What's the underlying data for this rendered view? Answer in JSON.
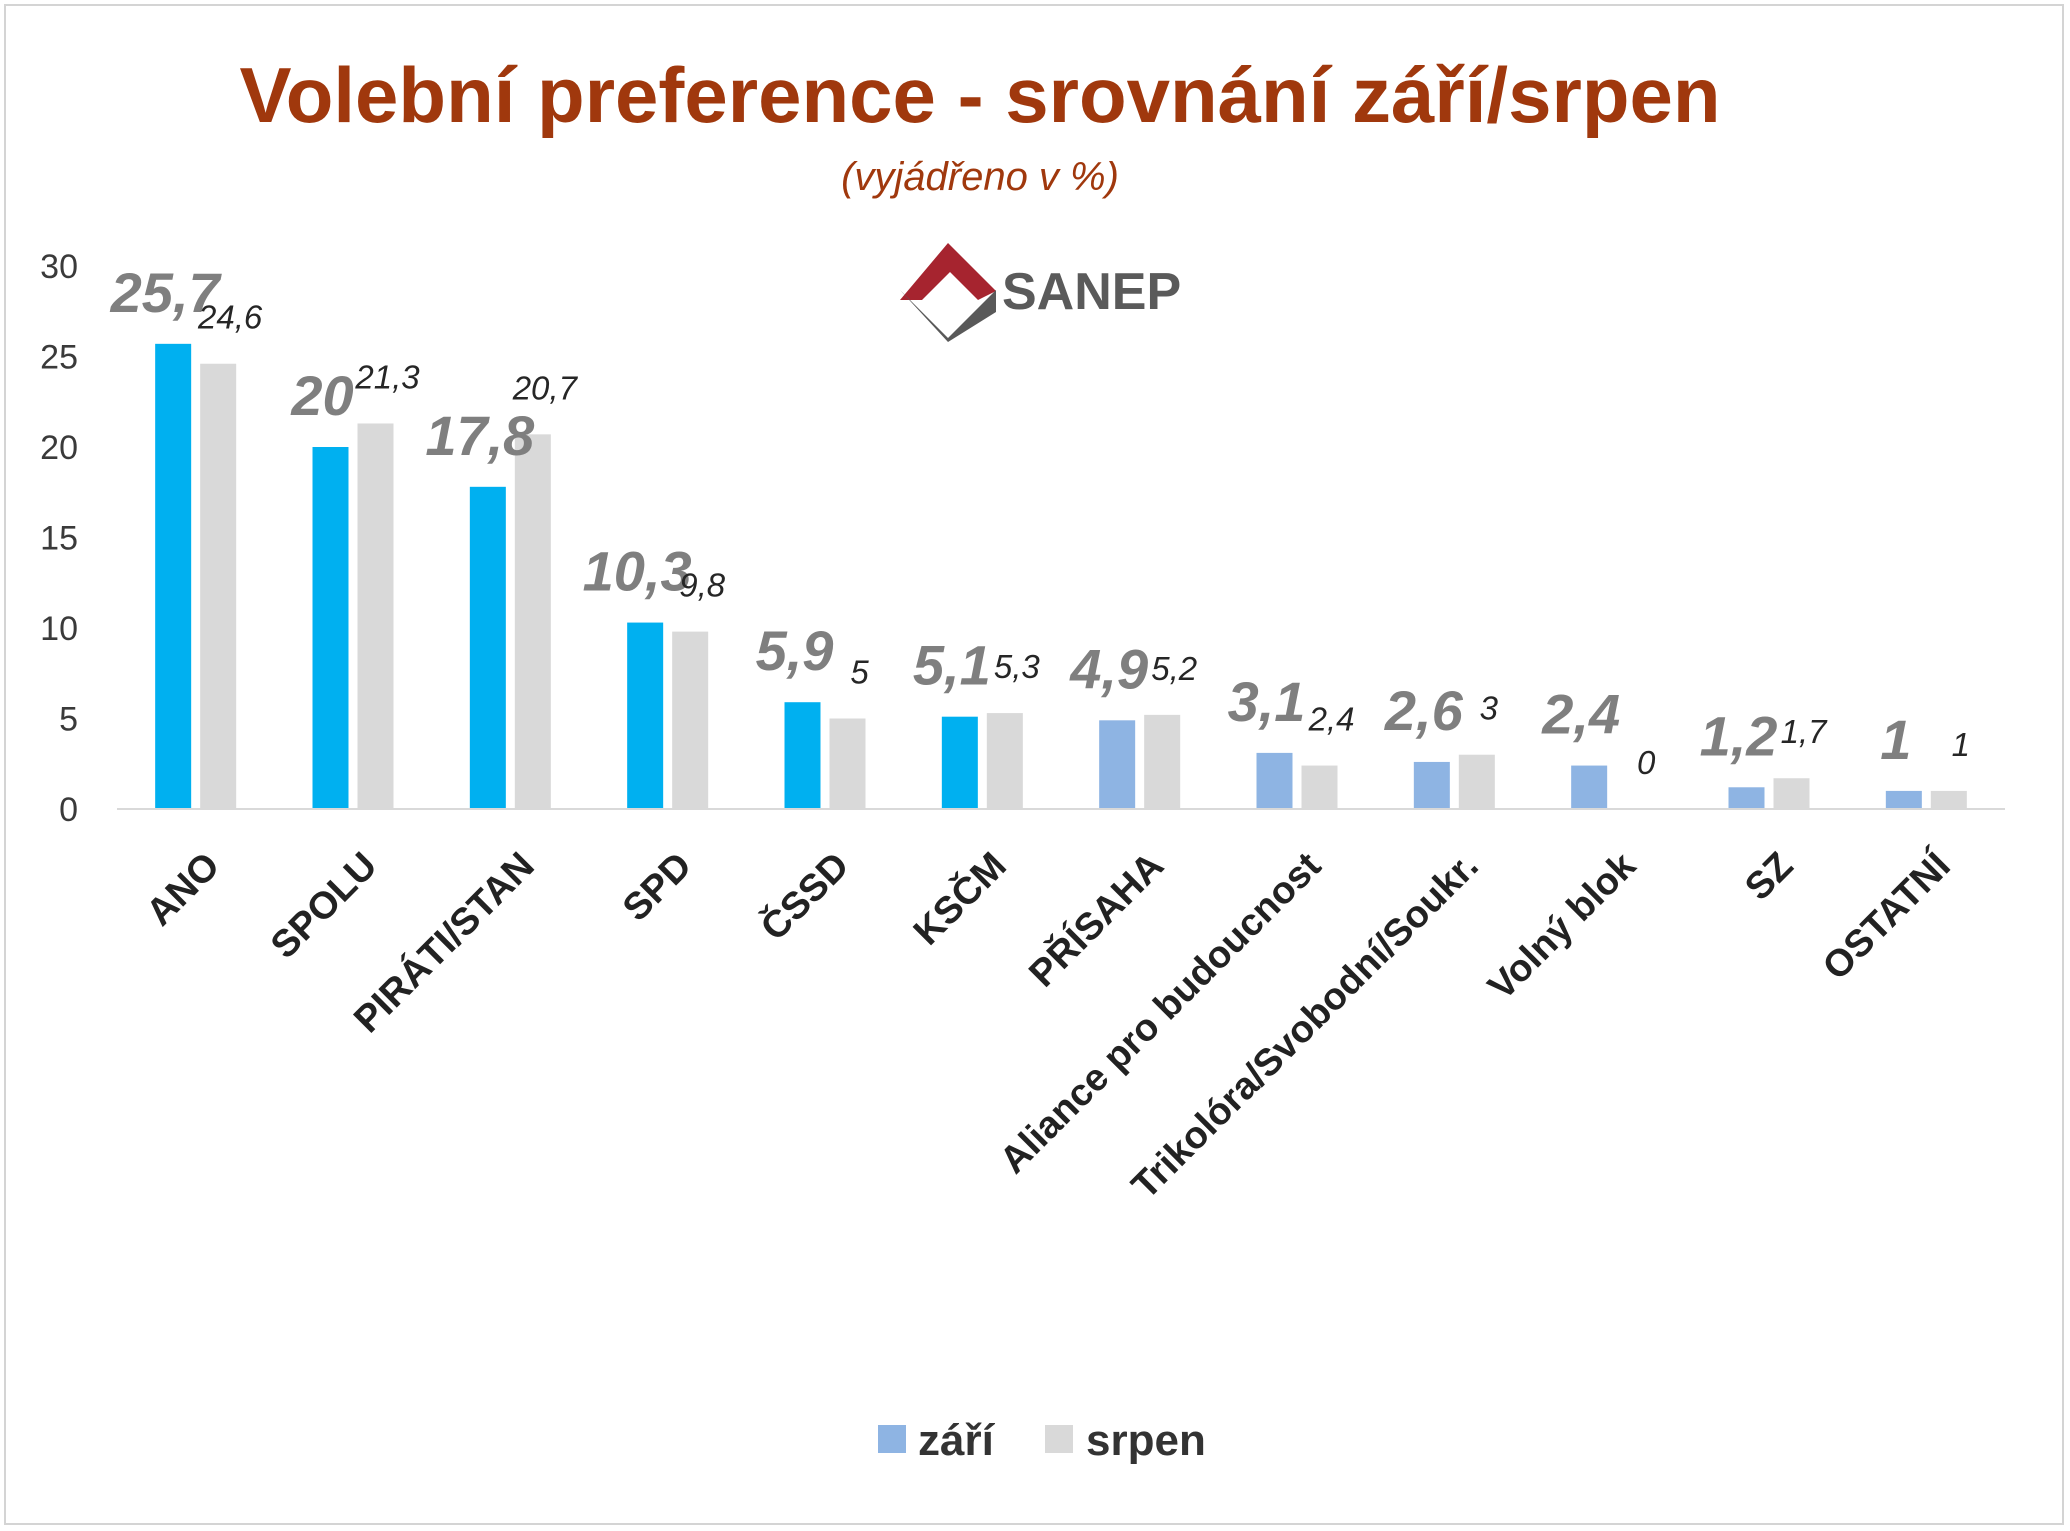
{
  "chart_data": {
    "type": "bar",
    "title": "Volební preference - srovnání září/srpen",
    "subtitle": "(vyjádřeno v %)",
    "logo_text": "SANEP",
    "categories": [
      "ANO",
      "SPOLU",
      "PIRÁTI/STAN",
      "SPD",
      "ČSSD",
      "KSČM",
      "PŘÍSAHA",
      "Aliance pro budoucnost",
      "Trikolóra/Svobodní/Soukr.",
      "Volný blok",
      "SZ",
      "OSTATNÍ"
    ],
    "series": [
      {
        "name": "září",
        "values": [
          25.7,
          20,
          17.8,
          10.3,
          5.9,
          5.1,
          4.9,
          3.1,
          2.6,
          2.4,
          1.2,
          1
        ],
        "labels": [
          "25,7",
          "20",
          "17,8",
          "10,3",
          "5,9",
          "5,1",
          "4,9",
          "3,1",
          "2,6",
          "2,4",
          "1,2",
          "1"
        ],
        "colors": [
          "#00b0f0",
          "#00b0f0",
          "#00b0f0",
          "#00b0f0",
          "#00b0f0",
          "#00b0f0",
          "#8eb4e3",
          "#8eb4e3",
          "#8eb4e3",
          "#8eb4e3",
          "#8eb4e3",
          "#8eb4e3"
        ],
        "legend_color": "#8eb4e3"
      },
      {
        "name": "srpen",
        "values": [
          24.6,
          21.3,
          20.7,
          9.8,
          5,
          5.3,
          5.2,
          2.4,
          3,
          0,
          1.7,
          1
        ],
        "labels": [
          "24,6",
          "21,3",
          "20,7",
          "9,8",
          "5",
          "5,3",
          "5,2",
          "2,4",
          "3",
          "0",
          "1,7",
          "1"
        ],
        "color": "#d9d9d9",
        "legend_color": "#d9d9d9"
      }
    ],
    "yticks": [
      "0",
      "5",
      "10",
      "15",
      "20",
      "25",
      "30"
    ],
    "ylim": [
      0,
      30
    ],
    "grid": false,
    "legend_position": "bottom",
    "xlabel": "",
    "ylabel": ""
  }
}
